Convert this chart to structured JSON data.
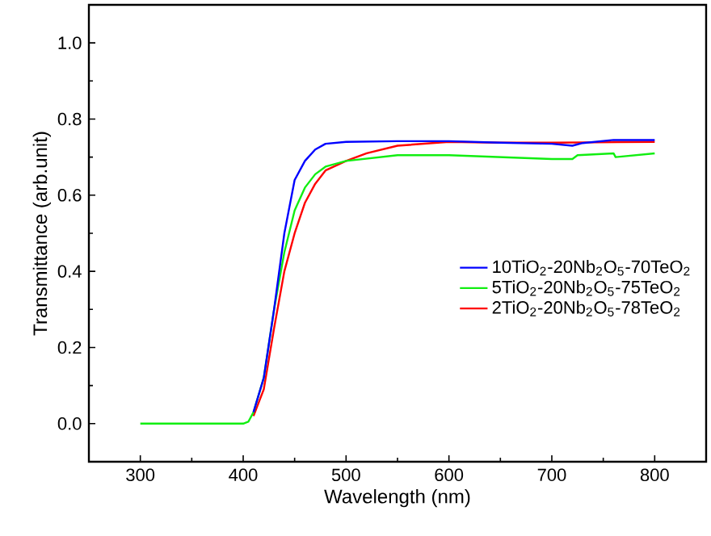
{
  "chart_data": {
    "type": "line",
    "xlabel": "Wavelength (nm)",
    "ylabel": "Transmittance (arb.unit)",
    "xlim": [
      250,
      850
    ],
    "xticks": [
      300,
      400,
      500,
      600,
      700,
      800
    ],
    "ylim": [
      -0.1,
      1.1
    ],
    "yticks": [
      {
        "value": 0,
        "label": "0.0"
      },
      0.2,
      0.4,
      0.6,
      0.8,
      {
        "value": 1,
        "label": "1.0"
      }
    ],
    "grid": false,
    "legend": "right",
    "marker": "none",
    "line_style": "solid",
    "series": [
      {
        "name": "10TiO$_{2}$-20Nb$_{2}$O$_{5}$-70TeO$_{2}$",
        "color": "#0000ff",
        "x": [
          410,
          420,
          430,
          440,
          450,
          460,
          470,
          480,
          500,
          550,
          600,
          650,
          700,
          720,
          730,
          760,
          800
        ],
        "values": [
          0.03,
          0.12,
          0.3,
          0.5,
          0.64,
          0.69,
          0.72,
          0.735,
          0.74,
          0.742,
          0.742,
          0.738,
          0.735,
          0.73,
          0.737,
          0.745,
          0.745
        ]
      },
      {
        "name": "5TiO$_{2}$-20Nb$_{2}$O$_{5}$-75TeO$_{2}$",
        "color": "#11ee11",
        "x": [
          300,
          350,
          400,
          405,
          410,
          420,
          430,
          440,
          450,
          460,
          470,
          480,
          500,
          550,
          600,
          650,
          700,
          720,
          725,
          760,
          762,
          800
        ],
        "values": [
          0,
          0,
          0,
          0.005,
          0.03,
          0.12,
          0.3,
          0.45,
          0.56,
          0.62,
          0.655,
          0.675,
          0.69,
          0.705,
          0.705,
          0.7,
          0.695,
          0.695,
          0.705,
          0.71,
          0.7,
          0.71
        ]
      },
      {
        "name": "2TiO$_{2}$-20Nb$_{2}$O$_{5}$-78TeO$_{2}$",
        "color": "#ff0000",
        "x": [
          410,
          420,
          430,
          440,
          450,
          460,
          470,
          480,
          500,
          520,
          550,
          600,
          650,
          700,
          800
        ],
        "values": [
          0.02,
          0.09,
          0.25,
          0.4,
          0.5,
          0.58,
          0.63,
          0.665,
          0.69,
          0.71,
          0.73,
          0.74,
          0.738,
          0.738,
          0.74
        ]
      }
    ]
  }
}
